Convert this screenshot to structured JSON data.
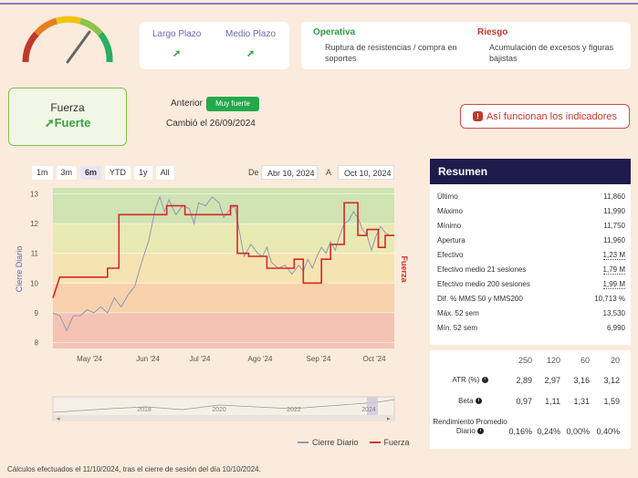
{
  "gauge": {
    "icon": "speedometer-gauge",
    "level": 0.7
  },
  "horizons": {
    "long_label": "Largo Plazo",
    "medium_label": "Medio Plazo",
    "long_arrow": "➚",
    "medium_arrow": "➚"
  },
  "signals": {
    "operativa_title": "Operativa",
    "operativa_text": "Ruptura de resistencias / compra en soportes",
    "riesgo_title": "Riesgo",
    "riesgo_text": "Acumulación de excesos y figuras bajistas"
  },
  "strength": {
    "label": "Fuerza",
    "value": "➚Fuerte"
  },
  "previous": {
    "label": "Anterior",
    "badge": "Muy fuerte",
    "changed": "Cambió el 26/09/2024"
  },
  "info_button": {
    "label": "Así funcionan los indicadores",
    "icon": "!"
  },
  "ranges": [
    "1m",
    "3m",
    "6m",
    "YTD",
    "1y",
    "All"
  ],
  "active_range": "6m",
  "date_from_label": "De",
  "date_from": "Abr 10, 2024",
  "date_to_label": "A",
  "date_to": "Oct 10, 2024",
  "chart_data": {
    "type": "line",
    "ylabel": "Cierre Diario",
    "y2label": "Fuerza",
    "ylim": [
      7.8,
      13.2
    ],
    "yticks": [
      8,
      9,
      10,
      11,
      12,
      13
    ],
    "xticks": [
      "May '24",
      "Jun '24",
      "Jul '24",
      "Ago '24",
      "Sep '24",
      "Oct '24"
    ],
    "navigator_labels": [
      "2018",
      "2020",
      "2022",
      "2024"
    ],
    "colors": {
      "close": "#8c9bb0",
      "strength": "#d62828"
    },
    "bands": [
      {
        "from": 12.0,
        "to": 13.2,
        "color": "#cfe3b3"
      },
      {
        "from": 11.0,
        "to": 12.0,
        "color": "#e9e9b4"
      },
      {
        "from": 10.0,
        "to": 11.0,
        "color": "#f6e3b2"
      },
      {
        "from": 9.0,
        "to": 10.0,
        "color": "#f8d2ad"
      },
      {
        "from": 7.8,
        "to": 9.0,
        "color": "#f4c3b4"
      }
    ],
    "series": [
      {
        "name": "Cierre Diario",
        "points": [
          [
            0,
            9.0
          ],
          [
            3,
            8.9
          ],
          [
            6,
            8.4
          ],
          [
            9,
            8.9
          ],
          [
            12,
            8.9
          ],
          [
            15,
            9.1
          ],
          [
            18,
            9.0
          ],
          [
            21,
            9.2
          ],
          [
            24,
            9.0
          ],
          [
            27,
            9.5
          ],
          [
            30,
            9.2
          ],
          [
            33,
            9.6
          ],
          [
            36,
            9.9
          ],
          [
            39,
            10.7
          ],
          [
            42,
            11.4
          ],
          [
            45,
            12.5
          ],
          [
            47,
            12.9
          ],
          [
            49,
            12.4
          ],
          [
            51,
            12.8
          ],
          [
            54,
            12.3
          ],
          [
            57,
            12.6
          ],
          [
            60,
            12.5
          ],
          [
            62,
            12.0
          ],
          [
            64,
            12.7
          ],
          [
            67,
            12.6
          ],
          [
            70,
            12.9
          ],
          [
            73,
            12.7
          ],
          [
            75,
            12.2
          ],
          [
            78,
            12.5
          ],
          [
            80,
            12.6
          ],
          [
            82,
            11.7
          ],
          [
            84,
            10.9
          ],
          [
            87,
            11.3
          ],
          [
            90,
            11.0
          ],
          [
            92,
            10.9
          ],
          [
            94,
            11.2
          ],
          [
            96,
            10.7
          ],
          [
            99,
            10.5
          ],
          [
            102,
            10.6
          ],
          [
            105,
            10.3
          ],
          [
            108,
            10.6
          ],
          [
            110,
            10.4
          ],
          [
            112,
            10.8
          ],
          [
            114,
            10.5
          ],
          [
            116,
            10.9
          ],
          [
            118,
            11.2
          ],
          [
            120,
            11.0
          ],
          [
            122,
            11.4
          ],
          [
            124,
            11.1
          ],
          [
            126,
            11.6
          ],
          [
            128,
            12.0
          ],
          [
            130,
            12.1
          ],
          [
            132,
            12.4
          ],
          [
            134,
            12.2
          ],
          [
            136,
            11.8
          ],
          [
            138,
            11.6
          ],
          [
            140,
            11.1
          ],
          [
            142,
            11.6
          ],
          [
            144,
            11.9
          ],
          [
            146,
            11.7
          ],
          [
            148,
            11.6
          ]
        ]
      },
      {
        "name": "Fuerza",
        "steps": [
          [
            0,
            9.5
          ],
          [
            3,
            10.2
          ],
          [
            24,
            10.2
          ],
          [
            24,
            10.5
          ],
          [
            29,
            10.5
          ],
          [
            29,
            12.3
          ],
          [
            50,
            12.3
          ],
          [
            50,
            12.6
          ],
          [
            58,
            12.6
          ],
          [
            58,
            12.3
          ],
          [
            78,
            12.3
          ],
          [
            78,
            12.6
          ],
          [
            81,
            12.6
          ],
          [
            81,
            11.0
          ],
          [
            86,
            11.0
          ],
          [
            86,
            10.9
          ],
          [
            94,
            10.9
          ],
          [
            94,
            10.5
          ],
          [
            106,
            10.5
          ],
          [
            106,
            10.8
          ],
          [
            110,
            10.8
          ],
          [
            110,
            10.0
          ],
          [
            118,
            10.0
          ],
          [
            118,
            10.8
          ],
          [
            122,
            10.8
          ],
          [
            122,
            11.3
          ],
          [
            128,
            11.3
          ],
          [
            128,
            12.7
          ],
          [
            134,
            12.7
          ],
          [
            134,
            11.6
          ],
          [
            138,
            11.6
          ],
          [
            138,
            11.8
          ],
          [
            143,
            11.8
          ],
          [
            143,
            11.2
          ],
          [
            146,
            11.2
          ],
          [
            146,
            11.6
          ],
          [
            150,
            11.6
          ]
        ]
      }
    ]
  },
  "legend": {
    "close": "Cierre Diario",
    "strength": "Fuerza"
  },
  "summary": {
    "title": "Resumen",
    "rows": [
      {
        "label": "Último",
        "value": "11,860"
      },
      {
        "label": "Máximo",
        "value": "11,990"
      },
      {
        "label": "Mínimo",
        "value": "11,750"
      },
      {
        "label": "Apertura",
        "value": "11,960"
      },
      {
        "label": "Efectivo",
        "value": "1,23 M"
      },
      {
        "label": "Efectivo medio 21 sesiones",
        "value": "1,79 M"
      },
      {
        "label": "Efectivo medio 200 sesiones",
        "value": "1,99 M"
      },
      {
        "label": "Dif. % MMS 50 y MMS200",
        "value": "10,713 %"
      },
      {
        "label": "Máx. 52 sem",
        "value": "13,530"
      },
      {
        "label": "Mín. 52 sem",
        "value": "6,990"
      }
    ]
  },
  "atr_table": {
    "headers": [
      "250",
      "120",
      "60",
      "20"
    ],
    "rows": [
      {
        "label": "ATR (%)",
        "values": [
          "2,89",
          "2,97",
          "3,16",
          "3,12"
        ]
      },
      {
        "label": "Beta",
        "values": [
          "0,97",
          "1,11",
          "1,31",
          "1,59"
        ]
      },
      {
        "label": "Rendimiento Promedio Diario",
        "values": [
          "0,16%",
          "0,24%",
          "0,00%",
          "0,40%"
        ]
      }
    ]
  },
  "footnote": "Cálculos efectuados el 11/10/2024, tras el cierre de sesión del día 10/10/2024."
}
